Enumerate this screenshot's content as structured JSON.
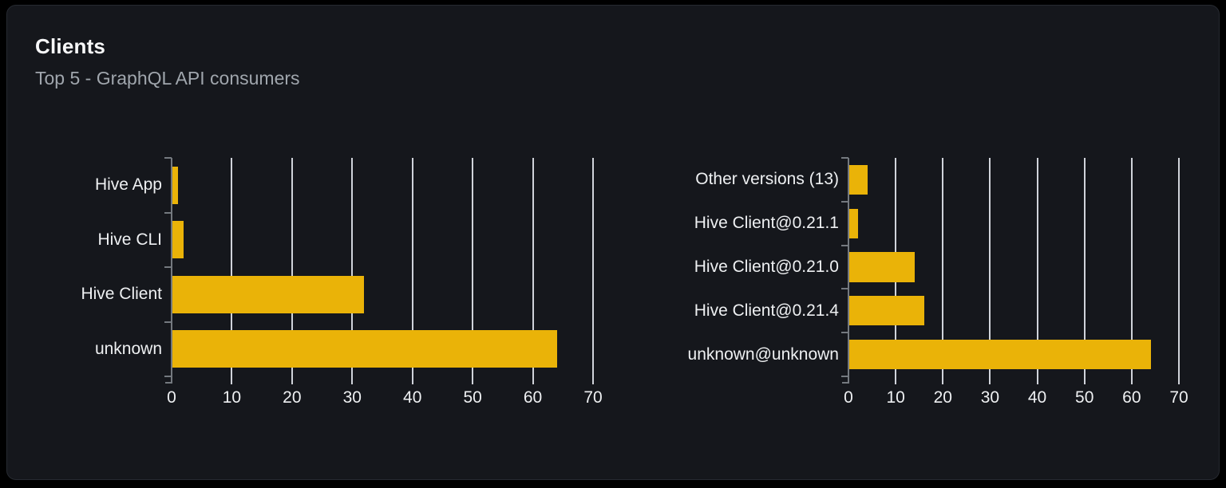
{
  "card": {
    "title": "Clients",
    "subtitle": "Top 5 - GraphQL API consumers"
  },
  "colors": {
    "page_background": "#000000",
    "card_background": "#15171c",
    "card_border": "#262a31",
    "bar": "#eab308",
    "gridline": "#e1e4ea",
    "axis": "#74797f",
    "title_text": "#f7f8f9",
    "subtitle_text": "#a0a6ad",
    "label_text": "#eef0f2"
  },
  "chart_data": [
    {
      "type": "bar",
      "orientation": "horizontal",
      "name": "clients-by-name",
      "title": "",
      "categories": [
        "Hive App",
        "Hive CLI",
        "Hive Client",
        "unknown"
      ],
      "values": [
        1,
        2,
        32,
        64
      ],
      "xlabel": "",
      "ylabel": "",
      "xlim": [
        0,
        70
      ],
      "xticks": [
        0,
        10,
        20,
        30,
        40,
        50,
        60,
        70
      ],
      "grid": true,
      "legend_position": "none",
      "bar_color": "#eab308"
    },
    {
      "type": "bar",
      "orientation": "horizontal",
      "name": "clients-by-version",
      "title": "",
      "categories": [
        "Other versions (13)",
        "Hive Client@0.21.1",
        "Hive Client@0.21.0",
        "Hive Client@0.21.4",
        "unknown@unknown"
      ],
      "values": [
        4,
        2,
        14,
        16,
        64
      ],
      "xlabel": "",
      "ylabel": "",
      "xlim": [
        0,
        70
      ],
      "xticks": [
        0,
        10,
        20,
        30,
        40,
        50,
        60,
        70
      ],
      "grid": true,
      "legend_position": "none",
      "bar_color": "#eab308"
    }
  ]
}
